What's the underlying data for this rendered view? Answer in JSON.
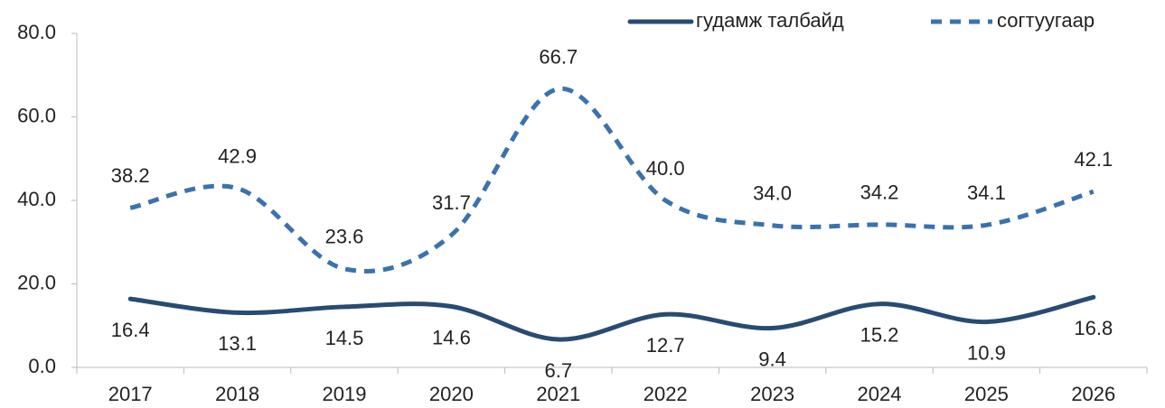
{
  "chart_data": {
    "type": "line",
    "categories": [
      "2017",
      "2018",
      "2019",
      "2020",
      "2021",
      "2022",
      "2023",
      "2024",
      "2025",
      "2026"
    ],
    "series": [
      {
        "name": "гудамж талбайд",
        "color": "#284b73",
        "style": "solid",
        "values": [
          16.4,
          13.1,
          14.5,
          14.6,
          6.7,
          12.7,
          9.4,
          15.2,
          10.9,
          16.8
        ],
        "value_labels": [
          "16.4",
          "13.1",
          "14.5",
          "14.6",
          "6.7",
          "12.7",
          "9.4",
          "15.2",
          "10.9",
          "16.8"
        ]
      },
      {
        "name": "согтуугаар",
        "color": "#3a72ae",
        "style": "dashed",
        "values": [
          38.2,
          42.9,
          23.6,
          31.7,
          66.7,
          40.0,
          34.0,
          34.2,
          34.1,
          42.1
        ],
        "value_labels": [
          "38.2",
          "42.9",
          "23.6",
          "31.7",
          "66.7",
          "40.0",
          "34.0",
          "34.2",
          "34.1",
          "42.1"
        ]
      }
    ],
    "ylim": [
      0,
      80
    ],
    "yticks": [
      {
        "value": 0,
        "label": "0.0"
      },
      {
        "value": 20,
        "label": "20.0"
      },
      {
        "value": 40,
        "label": "40.0"
      },
      {
        "value": 60,
        "label": "60.0"
      },
      {
        "value": 80,
        "label": "80.0"
      }
    ],
    "grid": false,
    "legend": "top-right",
    "smooth": true
  }
}
